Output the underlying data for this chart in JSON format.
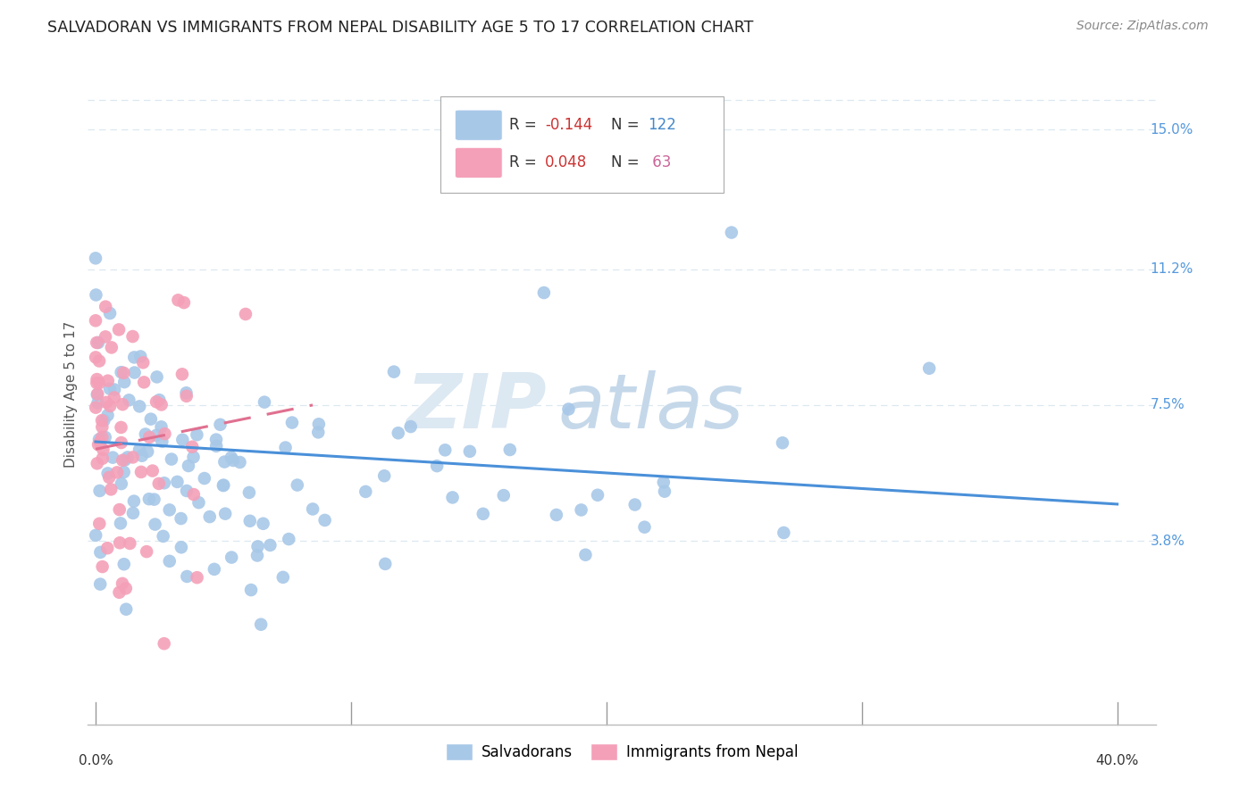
{
  "title": "SALVADORAN VS IMMIGRANTS FROM NEPAL DISABILITY AGE 5 TO 17 CORRELATION CHART",
  "source": "Source: ZipAtlas.com",
  "ylabel": "Disability Age 5 to 17",
  "ytick_labels": [
    "3.8%",
    "7.5%",
    "11.2%",
    "15.0%"
  ],
  "ytick_values": [
    0.038,
    0.075,
    0.112,
    0.15
  ],
  "xlim": [
    0.0,
    0.4
  ],
  "ylim": [
    0.0,
    0.16
  ],
  "color_blue": "#a8c8e8",
  "color_pink": "#f4a0b8",
  "trendline_blue": "#4a90d9",
  "trendline_pink": "#e07090",
  "grid_color": "#dce8f0",
  "watermark_zip_color": "#dce8f2",
  "watermark_atlas_color": "#c5d8ea",
  "R1": "-0.144",
  "N1": "122",
  "R2": "0.048",
  "N2": "63"
}
